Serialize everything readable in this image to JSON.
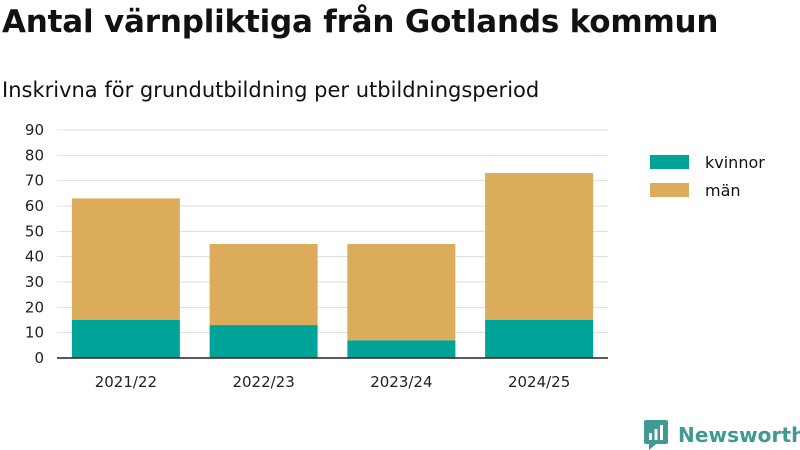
{
  "colors": {
    "kvinnor": "#00a398",
    "man": "#dbac5a",
    "grid": "#dddddd",
    "brand": "#3f9a92"
  },
  "brand": {
    "name": "Newsworthy",
    "icon": "newsworthy-logo-icon"
  },
  "chart_data": {
    "type": "bar",
    "stacked": true,
    "title": "Antal värnpliktiga från Gotlands kommun",
    "subtitle": "Inskrivna för grundutbildning per utbildningsperiod",
    "xlabel": "",
    "ylabel": "",
    "categories": [
      "2021/22",
      "2022/23",
      "2023/24",
      "2024/25"
    ],
    "series": [
      {
        "name": "kvinnor",
        "values": [
          15,
          13,
          7,
          15
        ]
      },
      {
        "name": "män",
        "values": [
          48,
          32,
          38,
          58
        ]
      }
    ],
    "ylim": [
      0,
      90
    ],
    "yticks": [
      0,
      10,
      20,
      30,
      40,
      50,
      60,
      70,
      80,
      90
    ],
    "grid": true,
    "legend": "right"
  }
}
